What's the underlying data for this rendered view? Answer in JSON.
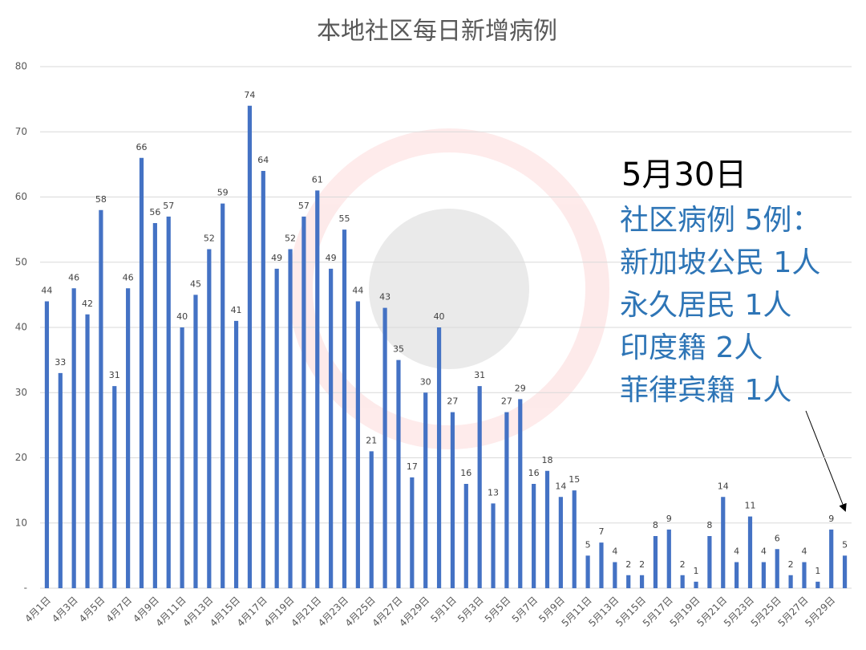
{
  "chart_data": {
    "type": "bar",
    "title": "本地社区每日新增病例",
    "categories": [
      "4月1日",
      null,
      "4月3日",
      null,
      "4月5日",
      null,
      "4月7日",
      null,
      "4月9日",
      null,
      "4月11日",
      null,
      "4月13日",
      null,
      "4月15日",
      null,
      "4月17日",
      null,
      "4月19日",
      null,
      "4月21日",
      null,
      "4月23日",
      null,
      "4月25日",
      null,
      "4月27日",
      null,
      "4月29日",
      null,
      "5月1日",
      null,
      "5月3日",
      null,
      "5月5日",
      null,
      "5月7日",
      null,
      "5月9日",
      null,
      "5月11日",
      null,
      "5月13日",
      null,
      "5月15日",
      null,
      "5月17日",
      null,
      "5月19日",
      null,
      "5月21日",
      null,
      "5月23日",
      null,
      "5月25日",
      null,
      "5月27日",
      null,
      "5月29日",
      null
    ],
    "values": [
      44,
      33,
      46,
      42,
      58,
      31,
      46,
      66,
      56,
      57,
      40,
      45,
      52,
      59,
      41,
      74,
      64,
      49,
      52,
      57,
      61,
      49,
      55,
      44,
      21,
      43,
      35,
      17,
      30,
      40,
      27,
      16,
      31,
      13,
      27,
      29,
      16,
      18,
      14,
      15,
      5,
      7,
      4,
      2,
      2,
      8,
      9,
      2,
      1,
      8,
      14,
      4,
      11,
      4,
      6,
      2,
      4,
      1,
      9,
      5
    ],
    "color": "#4472c4",
    "ylim": [
      0,
      80
    ],
    "yticks": [
      {
        "value": 0,
        "label": "-"
      },
      10,
      20,
      30,
      40,
      50,
      60,
      70,
      80
    ],
    "grid": true,
    "annotation": {
      "date": "5月30日",
      "lines": [
        "社区病例 5例：",
        "新加坡公民 1人",
        "永久居民 1人",
        "印度籍 2人",
        "菲律宾籍 1人"
      ]
    }
  }
}
